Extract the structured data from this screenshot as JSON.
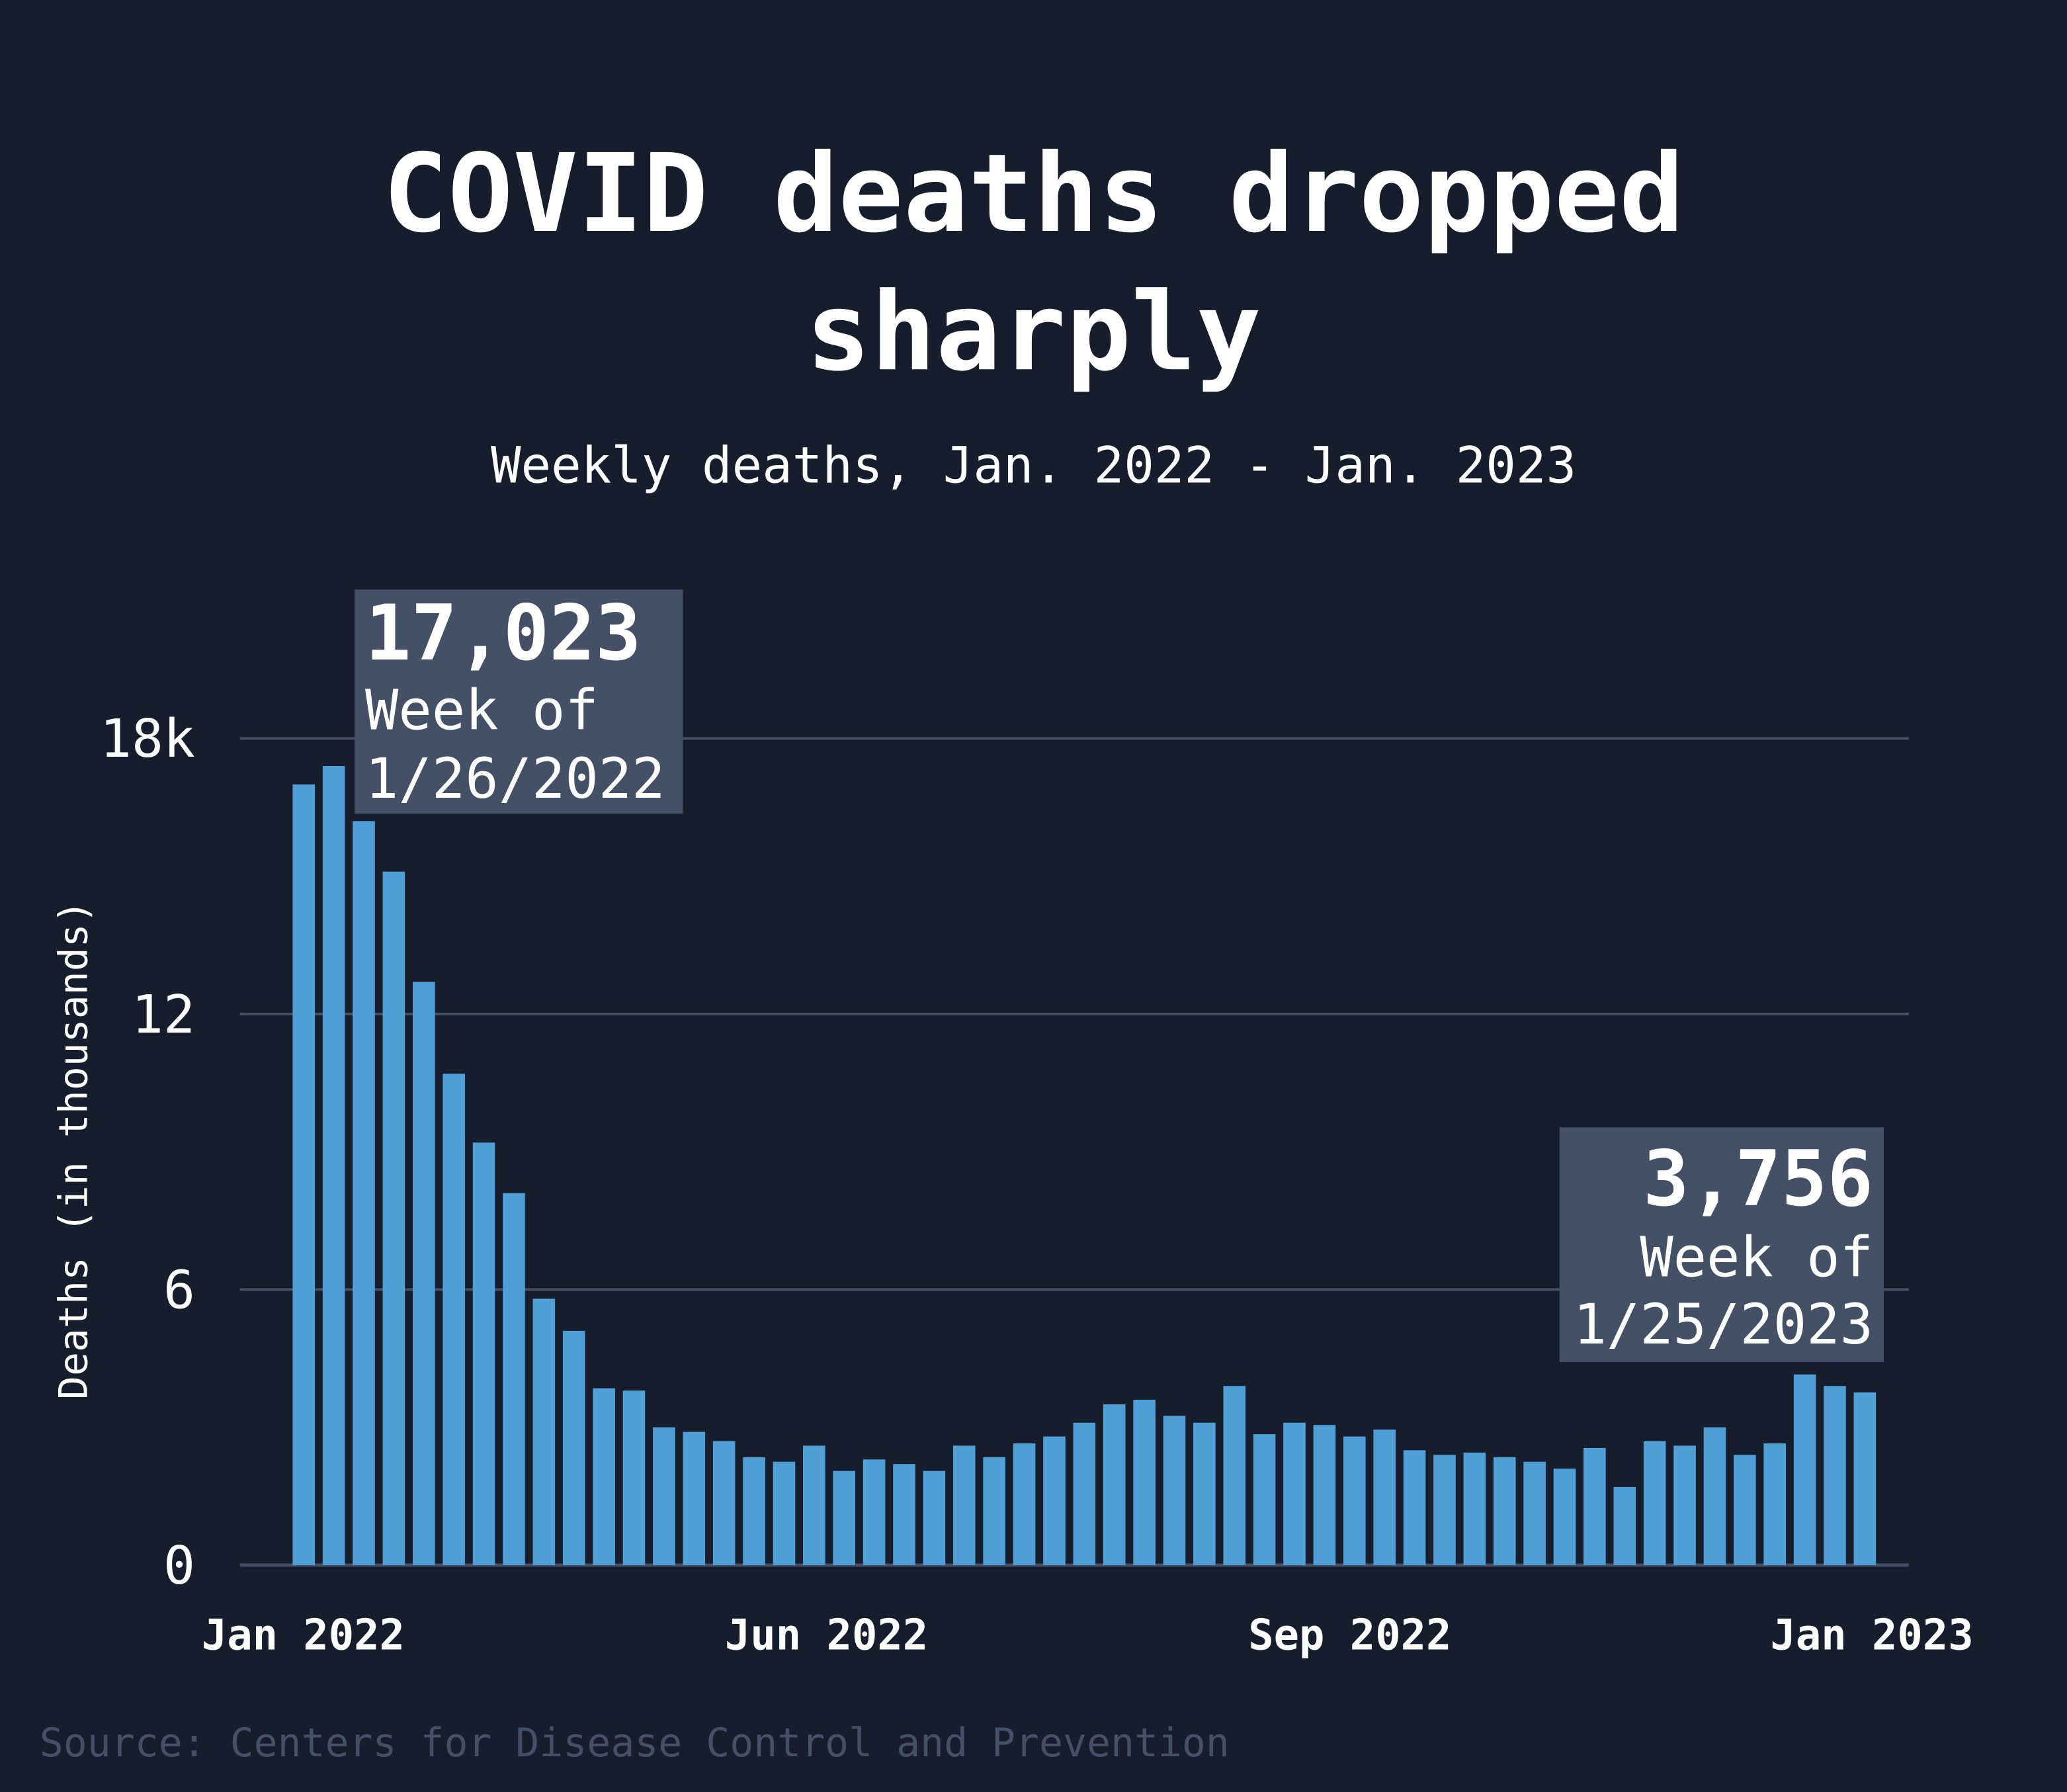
{
  "chart_data": {
    "type": "bar",
    "title": "COVID deaths dropped sharply",
    "subtitle": "Weekly deaths, Jan. 2022 - Jan. 2023",
    "ylabel": "Deaths (in thousands)",
    "xlabel": "",
    "ylim": [
      0,
      18
    ],
    "yticks": [
      {
        "v": 0,
        "label": "0"
      },
      {
        "v": 6,
        "label": "6"
      },
      {
        "v": 12,
        "label": "12"
      },
      {
        "v": 18,
        "label": "18k"
      }
    ],
    "xtick_labels": [
      "Jan 2022",
      "Jun 2022",
      "Sep 2022",
      "Jan 2023"
    ],
    "grid": true,
    "values": [
      17.0,
      17.4,
      16.2,
      15.1,
      12.7,
      10.7,
      9.2,
      8.1,
      5.8,
      5.1,
      3.85,
      3.8,
      3.0,
      2.9,
      2.7,
      2.35,
      2.25,
      2.6,
      2.05,
      2.3,
      2.2,
      2.05,
      2.6,
      2.35,
      2.65,
      2.8,
      3.1,
      3.5,
      3.6,
      3.25,
      3.1,
      3.9,
      2.85,
      3.1,
      3.05,
      2.8,
      2.95,
      2.5,
      2.4,
      2.45,
      2.35,
      2.25,
      2.1,
      2.55,
      1.7,
      2.7,
      2.6,
      3.0,
      2.4,
      2.65,
      4.15,
      3.9,
      3.76
    ],
    "annotations": [
      {
        "value": "17,023",
        "line1": "Week of",
        "line2": "1/26/2022"
      },
      {
        "value": "3,756",
        "line1": "Week of",
        "line2": "1/25/2023"
      }
    ],
    "source": "Source: Centers for Disease Control and Prevention"
  },
  "colors": {
    "background": "#161e2e",
    "bar": "#509fd7",
    "grid": "#435066",
    "annotation_box": "#435066",
    "source_text": "#435066"
  }
}
